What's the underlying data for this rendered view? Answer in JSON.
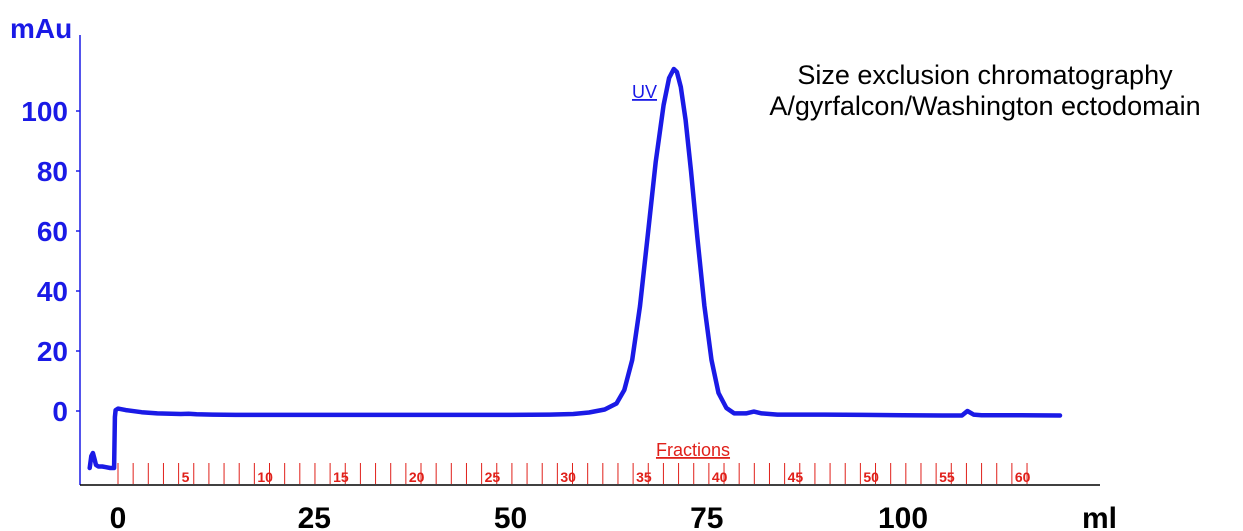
{
  "chart_data": {
    "type": "line",
    "title_lines": [
      "Size exclusion chromatography",
      "A/gyrfalcon/Washington ectodomain"
    ],
    "ylabel": "mAu",
    "xlabel": "ml",
    "xlim": [
      -4,
      120
    ],
    "ylim": [
      -22,
      122
    ],
    "x_ticks": [
      0,
      25,
      50,
      75,
      100
    ],
    "x_tick_labels": [
      "0",
      "25",
      "50",
      "75",
      "100"
    ],
    "y_ticks": [
      0,
      20,
      40,
      60,
      80,
      100
    ],
    "y_tick_labels": [
      "0",
      "20",
      "40",
      "60",
      "80",
      "100"
    ],
    "grid": false,
    "series": [
      {
        "name": "UV",
        "color": "#1a1ae6",
        "x": [
          -3.6,
          -3.4,
          -3.2,
          -3.0,
          -2.8,
          -2.5,
          -2.0,
          -1.6,
          -1.0,
          -0.5,
          -0.4,
          -0.3,
          0.0,
          1.0,
          3.0,
          5.0,
          8.0,
          9.0,
          10.0,
          12.0,
          15.0,
          20.0,
          30.0,
          40.0,
          50.0,
          55.0,
          58.0,
          60.0,
          62.0,
          63.5,
          64.5,
          65.5,
          66.5,
          67.5,
          68.5,
          69.5,
          70.2,
          70.8,
          71.2,
          71.7,
          72.3,
          73.0,
          73.8,
          74.7,
          75.6,
          76.5,
          77.5,
          78.5,
          80.0,
          81.0,
          82.0,
          84.0,
          90.0,
          95.0,
          100.0,
          105.0,
          107.5,
          108.2,
          109.0,
          110.0,
          115.0,
          120.0
        ],
        "y": [
          -19.0,
          -15.0,
          -14.0,
          -16.0,
          -18.0,
          -18.5,
          -18.5,
          -18.7,
          -19.0,
          -19.0,
          -2.0,
          0.3,
          0.8,
          0.3,
          -0.4,
          -0.8,
          -1.0,
          -0.9,
          -1.1,
          -1.2,
          -1.3,
          -1.3,
          -1.3,
          -1.3,
          -1.3,
          -1.2,
          -1.0,
          -0.5,
          0.5,
          2.5,
          7.0,
          17.0,
          35.0,
          59.0,
          83.0,
          102.0,
          111.0,
          114.0,
          113.0,
          108.0,
          97.0,
          80.0,
          58.0,
          35.0,
          17.0,
          6.0,
          1.0,
          -0.8,
          -0.8,
          -0.2,
          -0.8,
          -1.2,
          -1.2,
          -1.3,
          -1.4,
          -1.5,
          -1.5,
          0.0,
          -1.2,
          -1.4,
          -1.4,
          -1.5
        ]
      }
    ],
    "fractions": {
      "label": "Fractions",
      "numbered_labels": [
        "5",
        "10",
        "15",
        "20",
        "25",
        "30",
        "35",
        "40",
        "45",
        "50",
        "55",
        "60"
      ],
      "count": 61,
      "start_ml": 0.0,
      "step_ml": 1.93,
      "color": "#e0201a"
    }
  }
}
